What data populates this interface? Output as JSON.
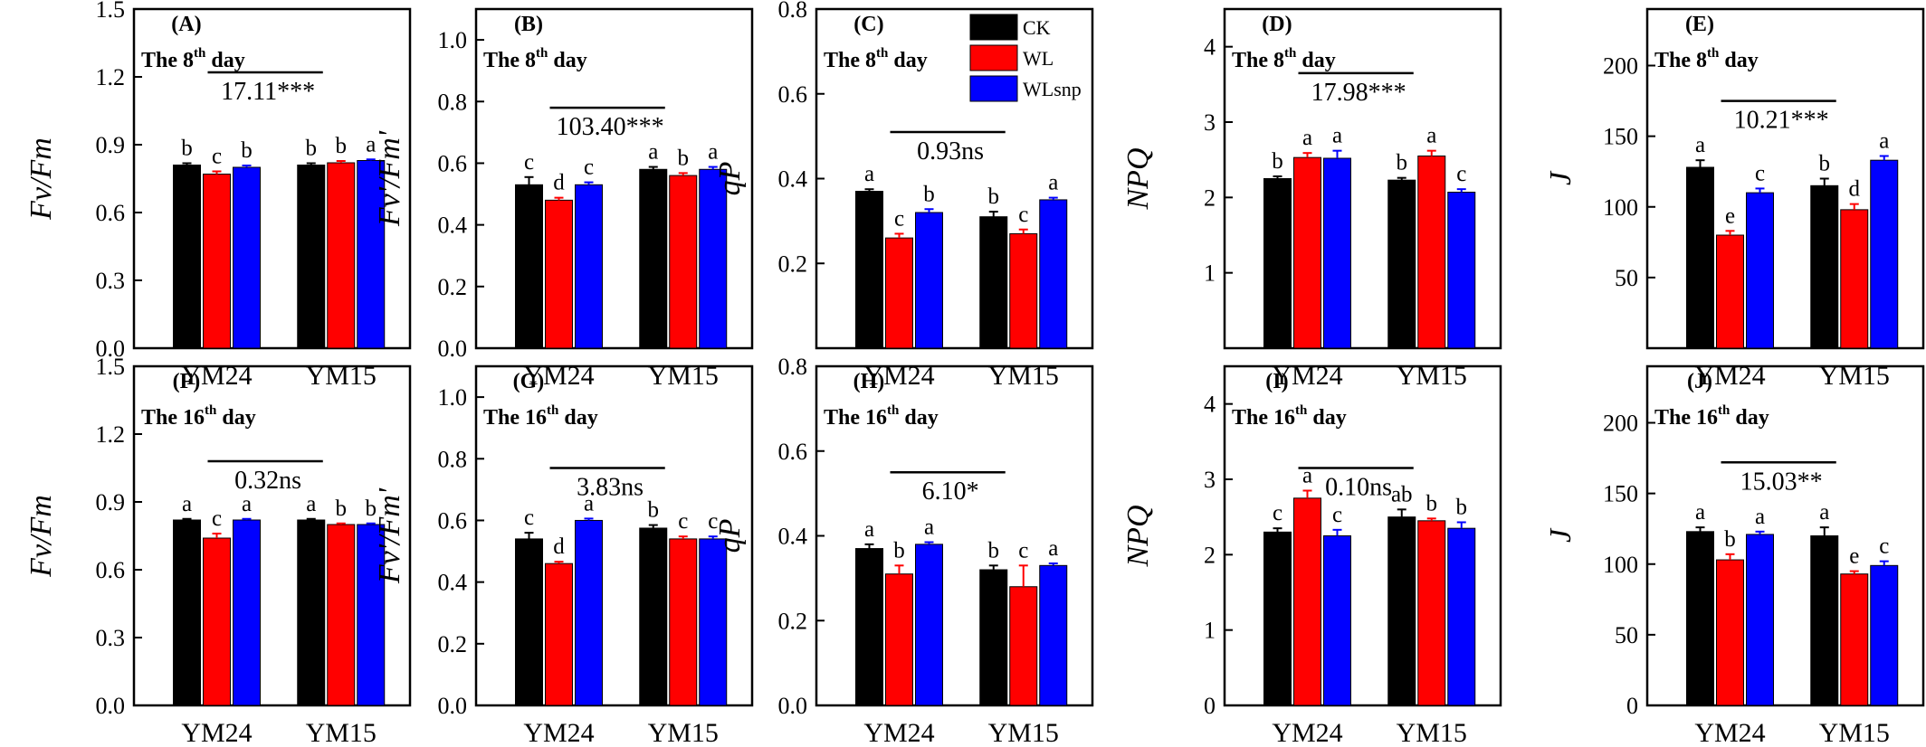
{
  "chart_data": [
    {
      "panel": "(A)",
      "day_label": "The 8",
      "day_sup": "th",
      "day_suffix": " day",
      "ylabel": "Fv/Fm",
      "type": "bar",
      "categories": [
        "YM24",
        "YM15"
      ],
      "ylim": [
        0,
        1.5
      ],
      "yticks": [
        "0.0",
        "0.3",
        "0.6",
        "0.9",
        "1.2",
        "1.5"
      ],
      "series": [
        {
          "name": "CK",
          "values": [
            0.81,
            0.81
          ],
          "errors": [
            0.008,
            0.008
          ],
          "letters": [
            "b",
            "b"
          ]
        },
        {
          "name": "WL",
          "values": [
            0.77,
            0.82
          ],
          "errors": [
            0.012,
            0.008
          ],
          "letters": [
            "c",
            "b"
          ]
        },
        {
          "name": "WLsnp",
          "values": [
            0.8,
            0.83
          ],
          "errors": [
            0.008,
            0.005
          ],
          "letters": [
            "b",
            "a"
          ]
        }
      ],
      "anova": "17.11***",
      "anova_y": 1.22
    },
    {
      "panel": "(B)",
      "day_label": "The 8",
      "day_sup": "th",
      "day_suffix": " day",
      "ylabel": "Fv'/Fm'",
      "type": "bar",
      "categories": [
        "YM24",
        "YM15"
      ],
      "ylim": [
        0,
        1.1
      ],
      "yticks": [
        "0.0",
        "0.2",
        "0.4",
        "0.6",
        "0.8",
        "1.0"
      ],
      "series": [
        {
          "name": "CK",
          "values": [
            0.53,
            0.58
          ],
          "errors": [
            0.025,
            0.008
          ],
          "letters": [
            "c",
            "a"
          ]
        },
        {
          "name": "WL",
          "values": [
            0.48,
            0.56
          ],
          "errors": [
            0.008,
            0.008
          ],
          "letters": [
            "d",
            "b"
          ]
        },
        {
          "name": "WLsnp",
          "values": [
            0.53,
            0.58
          ],
          "errors": [
            0.008,
            0.008
          ],
          "letters": [
            "c",
            "a"
          ]
        }
      ],
      "anova": "103.40***",
      "anova_y": 0.78
    },
    {
      "panel": "(C)",
      "day_label": "The 8",
      "day_sup": "th",
      "day_suffix": " day",
      "ylabel": "qP",
      "type": "bar",
      "categories": [
        "YM24",
        "YM15"
      ],
      "ylim": [
        0,
        0.8
      ],
      "yticks": [
        "0.2",
        "0.4",
        "0.6",
        "0.8"
      ],
      "series": [
        {
          "name": "CK",
          "values": [
            0.37,
            0.31
          ],
          "errors": [
            0.005,
            0.012
          ],
          "letters": [
            "a",
            "b"
          ]
        },
        {
          "name": "WL",
          "values": [
            0.26,
            0.27
          ],
          "errors": [
            0.01,
            0.01
          ],
          "letters": [
            "c",
            "c"
          ]
        },
        {
          "name": "WLsnp",
          "values": [
            0.32,
            0.35
          ],
          "errors": [
            0.008,
            0.005
          ],
          "letters": [
            "b",
            "a"
          ]
        }
      ],
      "anova": "0.93ns",
      "anova_y": 0.51,
      "legend": [
        {
          "name": "CK",
          "color": "#000000"
        },
        {
          "name": "WL",
          "color": "#ff0000"
        },
        {
          "name": "WLsnp",
          "color": "#0000ff"
        }
      ]
    },
    {
      "panel": "(D)",
      "day_label": "The 8",
      "day_sup": "th",
      "day_suffix": " day",
      "ylabel": "NPQ",
      "type": "bar",
      "categories": [
        "YM24",
        "YM15"
      ],
      "ylim": [
        0,
        4.5
      ],
      "yticks": [
        "1",
        "2",
        "3",
        "4"
      ],
      "series": [
        {
          "name": "CK",
          "values": [
            2.25,
            2.23
          ],
          "errors": [
            0.03,
            0.03
          ],
          "letters": [
            "b",
            "b"
          ]
        },
        {
          "name": "WL",
          "values": [
            2.53,
            2.55
          ],
          "errors": [
            0.06,
            0.07
          ],
          "letters": [
            "a",
            "a"
          ]
        },
        {
          "name": "WLsnp",
          "values": [
            2.52,
            2.07
          ],
          "errors": [
            0.1,
            0.04
          ],
          "letters": [
            "a",
            "c"
          ]
        }
      ],
      "anova": "17.98***",
      "anova_y": 3.65
    },
    {
      "panel": "(E)",
      "day_label": "The 8",
      "day_sup": "th",
      "day_suffix": " day",
      "ylabel": "J",
      "type": "bar",
      "categories": [
        "YM24",
        "YM15"
      ],
      "ylim": [
        0,
        240
      ],
      "yticks": [
        "50",
        "100",
        "150",
        "200"
      ],
      "series": [
        {
          "name": "CK",
          "values": [
            128,
            115
          ],
          "errors": [
            5,
            5
          ],
          "letters": [
            "a",
            "b"
          ]
        },
        {
          "name": "WL",
          "values": [
            80,
            98
          ],
          "errors": [
            3,
            4
          ],
          "letters": [
            "e",
            "d"
          ]
        },
        {
          "name": "WLsnp",
          "values": [
            110,
            133
          ],
          "errors": [
            3,
            3
          ],
          "letters": [
            "c",
            "a"
          ]
        }
      ],
      "anova": "10.21***",
      "anova_y": 175
    },
    {
      "panel": "(F)",
      "day_label": "The 16",
      "day_sup": "th",
      "day_suffix": " day",
      "ylabel": "Fv/Fm",
      "type": "bar",
      "categories": [
        "YM24",
        "YM15"
      ],
      "ylim": [
        0,
        1.5
      ],
      "yticks": [
        "0.0",
        "0.3",
        "0.6",
        "0.9",
        "1.2",
        "1.5"
      ],
      "series": [
        {
          "name": "CK",
          "values": [
            0.82,
            0.82
          ],
          "errors": [
            0.005,
            0.005
          ],
          "letters": [
            "a",
            "a"
          ]
        },
        {
          "name": "WL",
          "values": [
            0.74,
            0.8
          ],
          "errors": [
            0.02,
            0.005
          ],
          "letters": [
            "c",
            "b"
          ]
        },
        {
          "name": "WLsnp",
          "values": [
            0.82,
            0.8
          ],
          "errors": [
            0.005,
            0.005
          ],
          "letters": [
            "a",
            "b"
          ]
        }
      ],
      "anova": "0.32ns",
      "anova_y": 1.08
    },
    {
      "panel": "(G)",
      "day_label": "The 16",
      "day_sup": "th",
      "day_suffix": " day",
      "ylabel": "Fv'/Fm'",
      "type": "bar",
      "categories": [
        "YM24",
        "YM15"
      ],
      "ylim": [
        0,
        1.1
      ],
      "yticks": [
        "0.0",
        "0.2",
        "0.4",
        "0.6",
        "0.8",
        "1.0"
      ],
      "series": [
        {
          "name": "CK",
          "values": [
            0.54,
            0.575
          ],
          "errors": [
            0.02,
            0.01
          ],
          "letters": [
            "c",
            "b"
          ]
        },
        {
          "name": "WL",
          "values": [
            0.46,
            0.54
          ],
          "errors": [
            0.006,
            0.008
          ],
          "letters": [
            "d",
            "c"
          ]
        },
        {
          "name": "WLsnp",
          "values": [
            0.6,
            0.54
          ],
          "errors": [
            0.006,
            0.008
          ],
          "letters": [
            "a",
            "c"
          ]
        }
      ],
      "anova": "3.83ns",
      "anova_y": 0.77
    },
    {
      "panel": "(H)",
      "day_label": "The 16",
      "day_sup": "th",
      "day_suffix": " day",
      "ylabel": "qP",
      "type": "bar",
      "categories": [
        "YM24",
        "YM15"
      ],
      "ylim": [
        0,
        0.8
      ],
      "yticks": [
        "0.0",
        "0.2",
        "0.4",
        "0.6",
        "0.8"
      ],
      "series": [
        {
          "name": "CK",
          "values": [
            0.37,
            0.32
          ],
          "errors": [
            0.01,
            0.01
          ],
          "letters": [
            "a",
            "b"
          ]
        },
        {
          "name": "WL",
          "values": [
            0.31,
            0.28
          ],
          "errors": [
            0.02,
            0.05
          ],
          "letters": [
            "b",
            "c"
          ]
        },
        {
          "name": "WLsnp",
          "values": [
            0.38,
            0.33
          ],
          "errors": [
            0.005,
            0.005
          ],
          "letters": [
            "a",
            "a"
          ]
        }
      ],
      "anova": "6.10*",
      "anova_y": 0.55
    },
    {
      "panel": "(I)",
      "day_label": "The 16",
      "day_sup": "th",
      "day_suffix": " day",
      "ylabel": "NPQ",
      "type": "bar",
      "categories": [
        "YM24",
        "YM15"
      ],
      "ylim": [
        0,
        4.5
      ],
      "yticks": [
        "0",
        "1",
        "2",
        "3",
        "4"
      ],
      "series": [
        {
          "name": "CK",
          "values": [
            2.3,
            2.5
          ],
          "errors": [
            0.05,
            0.1
          ],
          "letters": [
            "c",
            "ab"
          ]
        },
        {
          "name": "WL",
          "values": [
            2.75,
            2.45
          ],
          "errors": [
            0.1,
            0.03
          ],
          "letters": [
            "a",
            "b"
          ]
        },
        {
          "name": "WLsnp",
          "values": [
            2.25,
            2.35
          ],
          "errors": [
            0.08,
            0.08
          ],
          "letters": [
            "c",
            "b"
          ]
        }
      ],
      "anova": "0.10ns",
      "anova_y": 3.15
    },
    {
      "panel": "(J)",
      "day_label": "The 16",
      "day_sup": "th",
      "day_suffix": " day",
      "ylabel": "J",
      "type": "bar",
      "categories": [
        "YM24",
        "YM15"
      ],
      "ylim": [
        0,
        240
      ],
      "yticks": [
        "0",
        "50",
        "100",
        "150",
        "200"
      ],
      "series": [
        {
          "name": "CK",
          "values": [
            123,
            120
          ],
          "errors": [
            3,
            6
          ],
          "letters": [
            "a",
            "a"
          ]
        },
        {
          "name": "WL",
          "values": [
            103,
            93
          ],
          "errors": [
            4,
            2
          ],
          "letters": [
            "b",
            "e"
          ]
        },
        {
          "name": "WLsnp",
          "values": [
            121,
            99
          ],
          "errors": [
            2,
            3
          ],
          "letters": [
            "a",
            "c"
          ]
        }
      ],
      "anova": "15.03**",
      "anova_y": 172
    }
  ],
  "series_colors": {
    "CK": "#000000",
    "WL": "#ff0000",
    "WLsnp": "#0000ff"
  }
}
